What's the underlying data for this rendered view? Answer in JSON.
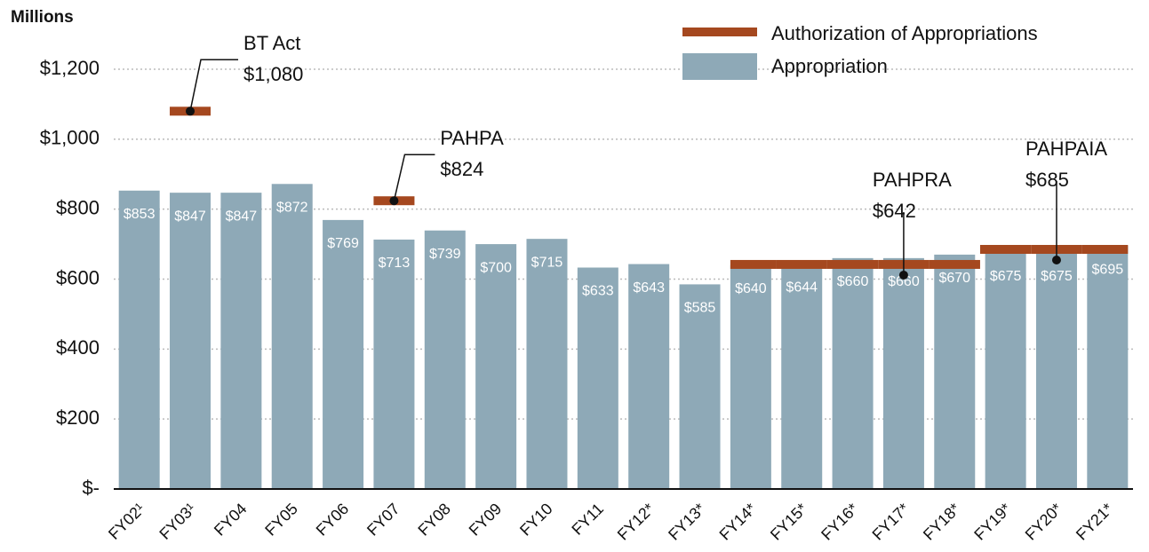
{
  "chart_data": {
    "type": "bar",
    "y_axis_label": "Millions",
    "categories": [
      "FY02¹",
      "FY03¹",
      "FY04",
      "FY05",
      "FY06",
      "FY07",
      "FY08",
      "FY09",
      "FY10",
      "FY11",
      "FY12*",
      "FY13*",
      "FY14*",
      "FY15*",
      "FY16*",
      "FY17*",
      "FY18*",
      "FY19*",
      "FY20*",
      "FY21*"
    ],
    "series": [
      {
        "name": "Appropriation",
        "color": "#8ea9b7",
        "values": [
          853,
          847,
          847,
          872,
          769,
          713,
          739,
          700,
          715,
          633,
          643,
          585,
          640,
          644,
          660,
          660,
          670,
          675,
          675,
          695
        ],
        "value_labels": [
          "$853",
          "$847",
          "$847",
          "$872",
          "$769",
          "$713",
          "$739",
          "$700",
          "$715",
          "$633",
          "$643",
          "$585",
          "$640",
          "$644",
          "$660",
          "$660",
          "$670",
          "$675",
          "$675",
          "$695"
        ]
      },
      {
        "name": "Authorization of Appropriations",
        "color": "#a5481f",
        "values": [
          null,
          1080,
          null,
          null,
          null,
          824,
          null,
          null,
          null,
          null,
          null,
          null,
          642,
          642,
          642,
          642,
          642,
          685,
          685,
          685
        ]
      }
    ],
    "annotations": [
      {
        "text": "BT Act",
        "value": 1080,
        "value_label": "$1,080"
      },
      {
        "text": "PAHPA",
        "value": 824,
        "value_label": "$824"
      },
      {
        "text": "PAHPRA",
        "value": 642,
        "value_label": "$642"
      },
      {
        "text": "PAHPAIA",
        "value": 685,
        "value_label": "$685"
      }
    ],
    "ylim": [
      0,
      1200
    ],
    "yticks": [
      {
        "value": 0,
        "label": "$-"
      },
      {
        "value": 200,
        "label": "$200"
      },
      {
        "value": 400,
        "label": "$400"
      },
      {
        "value": 600,
        "label": "$600"
      },
      {
        "value": 800,
        "label": "$800"
      },
      {
        "value": 1000,
        "label": "$1,000"
      },
      {
        "value": 1200,
        "label": "$1,200"
      }
    ],
    "grid": true,
    "legend": "top-right"
  }
}
